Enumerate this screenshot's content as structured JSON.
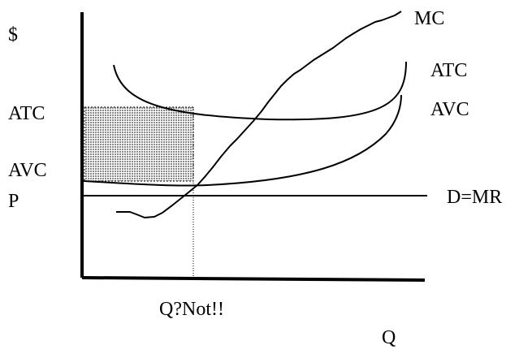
{
  "labels": {
    "y_axis": "$",
    "x_axis": "Q",
    "atc_axis": "ATC",
    "avc_axis": "AVC",
    "p_axis": "P",
    "mc_curve": "MC",
    "atc_curve": "ATC",
    "avc_curve": "AVC",
    "demand_line": "D=MR",
    "q_marker": "Q?Not!!"
  },
  "colors": {
    "ink": "#000000",
    "loss_area": "#b8b8b8",
    "background": "#ffffff"
  }
}
